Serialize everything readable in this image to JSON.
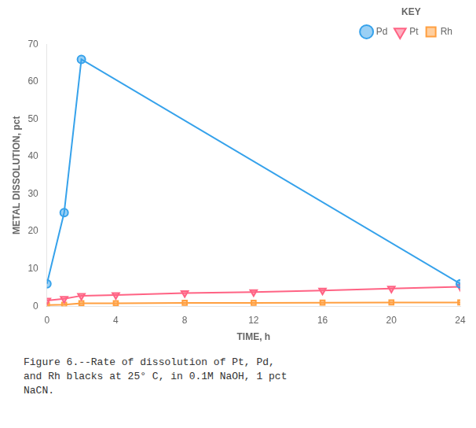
{
  "chart_data": {
    "type": "line",
    "xlabel": "TIME, h",
    "ylabel": "METAL DISSOLUTION, pct",
    "legend_title": "KEY",
    "annotations": [
      "Figure 6.--Rate of dissolution of Pt, Pd,\nand Rh blacks at 25° C, in 0.1M NaOH, 1 pct\nNaCN."
    ],
    "series": [
      {
        "name": "Pd",
        "marker": "circle",
        "x": [
          0,
          1,
          2,
          24
        ],
        "values": [
          6,
          25,
          66,
          6
        ]
      },
      {
        "name": "Pt",
        "marker": "triangle_down",
        "x": [
          0,
          1,
          2,
          4,
          8,
          12,
          16,
          20,
          24
        ],
        "values": [
          1.5,
          2.0,
          2.8,
          3.0,
          3.5,
          3.8,
          4.2,
          4.7,
          5.2
        ]
      },
      {
        "name": "Rh",
        "marker": "square",
        "x": [
          0,
          1,
          2,
          4,
          8,
          12,
          16,
          20,
          24
        ],
        "values": [
          0.3,
          0.4,
          0.8,
          0.8,
          0.9,
          0.9,
          0.95,
          1.0,
          1.0
        ]
      }
    ],
    "xlim": [
      0,
      24
    ],
    "ylim": [
      0,
      70
    ],
    "xticks": [
      0,
      4,
      8,
      12,
      16,
      20,
      24
    ],
    "yticks": [
      0,
      10,
      20,
      30,
      40,
      50,
      60,
      70
    ],
    "grid": false,
    "legend": "upper right"
  }
}
